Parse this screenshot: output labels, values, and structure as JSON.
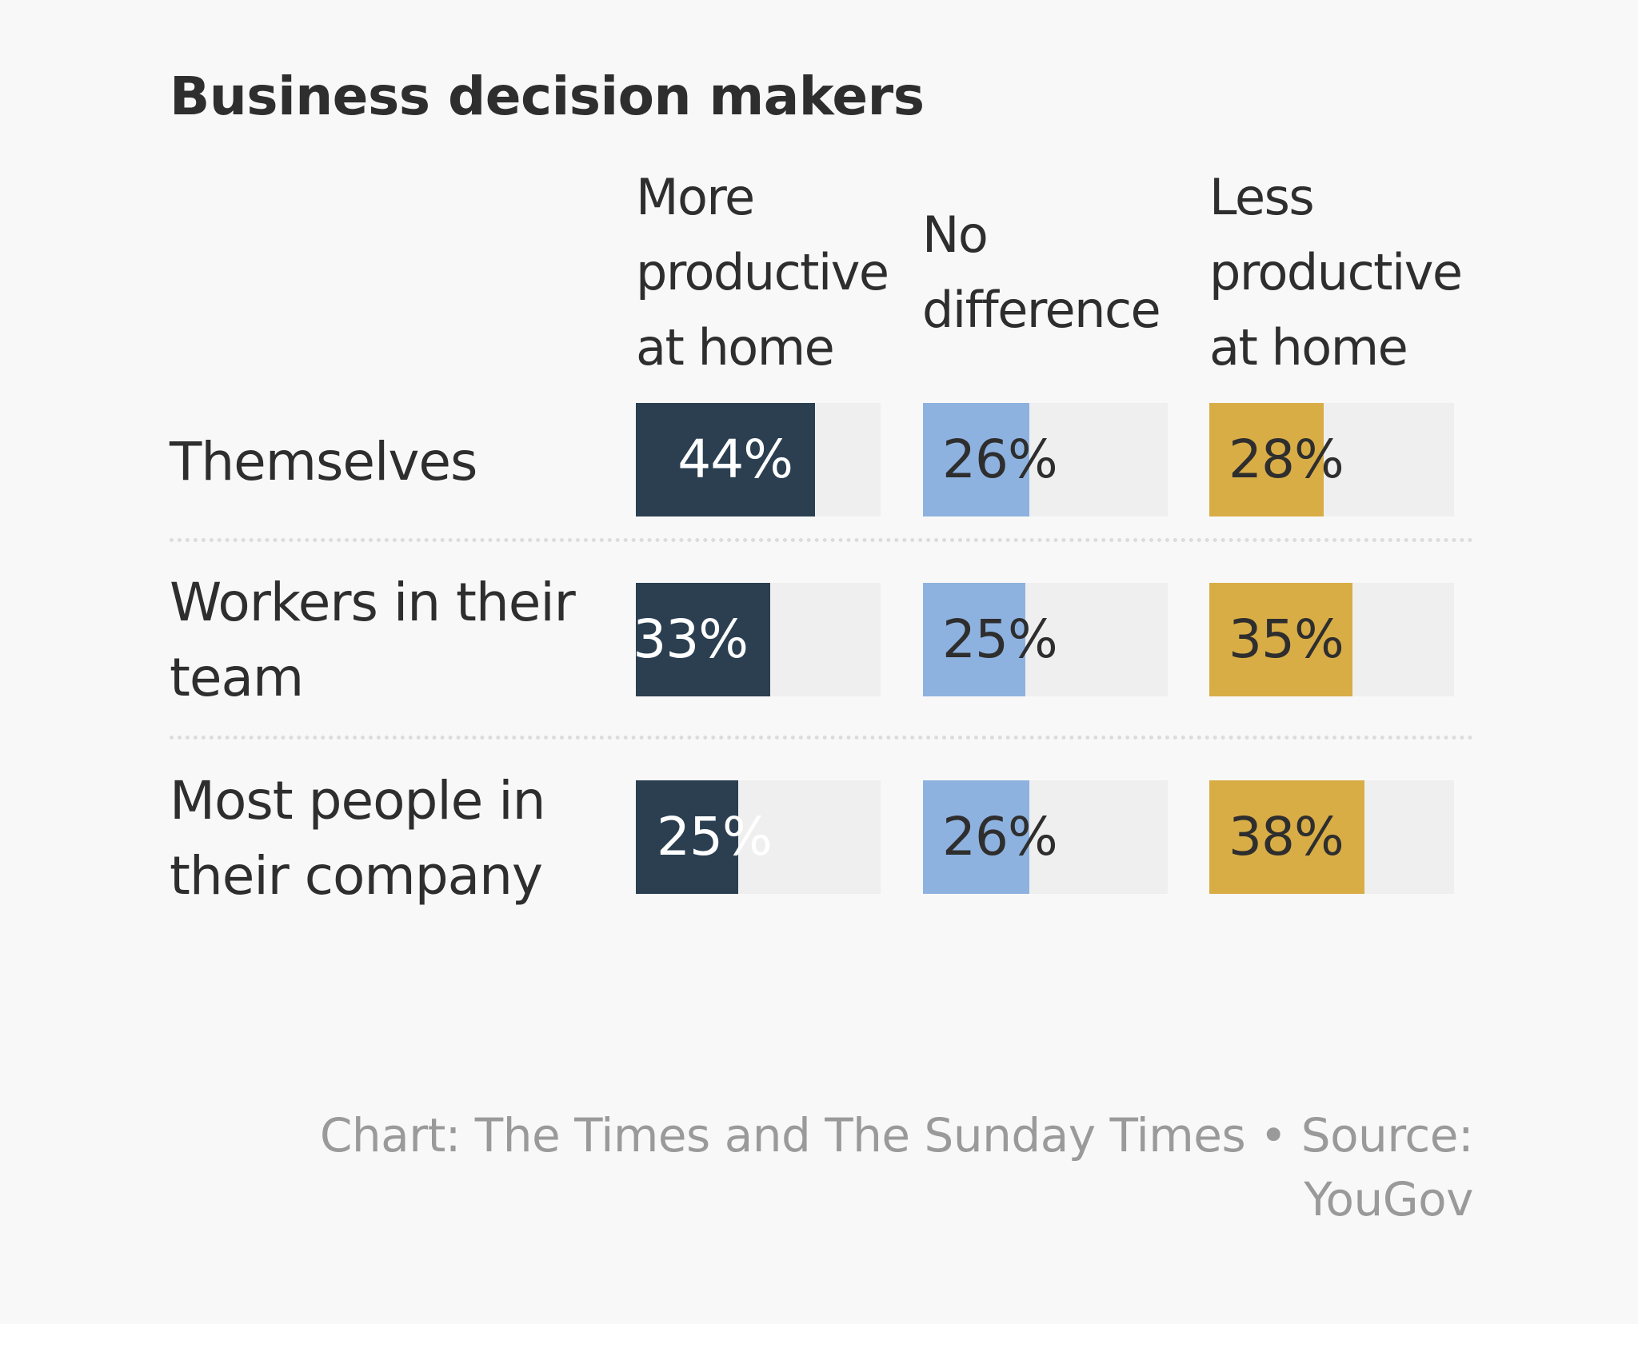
{
  "chart_data": {
    "type": "bar",
    "title": "Business decision makers",
    "categories": [
      "Themselves",
      "Workers in their\nteam",
      "Most people in\ntheir company"
    ],
    "series": [
      {
        "name": "More\nproductive\nat home",
        "values": [
          44,
          33,
          25
        ],
        "color": "#2b3f51",
        "label_color": "#ffffff"
      },
      {
        "name": "No\ndifference",
        "values": [
          26,
          25,
          26
        ],
        "color": "#8eb2df",
        "label_color": "#2e2e2e"
      },
      {
        "name": "Less\nproductive\nat home",
        "values": [
          28,
          35,
          38
        ],
        "color": "#d9ad46",
        "label_color": "#2e2e2e"
      }
    ],
    "value_labels": [
      [
        "44%",
        "33%",
        "25%"
      ],
      [
        "26%",
        "25%",
        "26%"
      ],
      [
        "28%",
        "35%",
        "38%"
      ]
    ],
    "xlim": [
      0,
      60
    ],
    "track_color": "#efefef"
  },
  "footer": {
    "credit": "Chart: The Times and The Sunday Times • Source:\nYouGov"
  }
}
